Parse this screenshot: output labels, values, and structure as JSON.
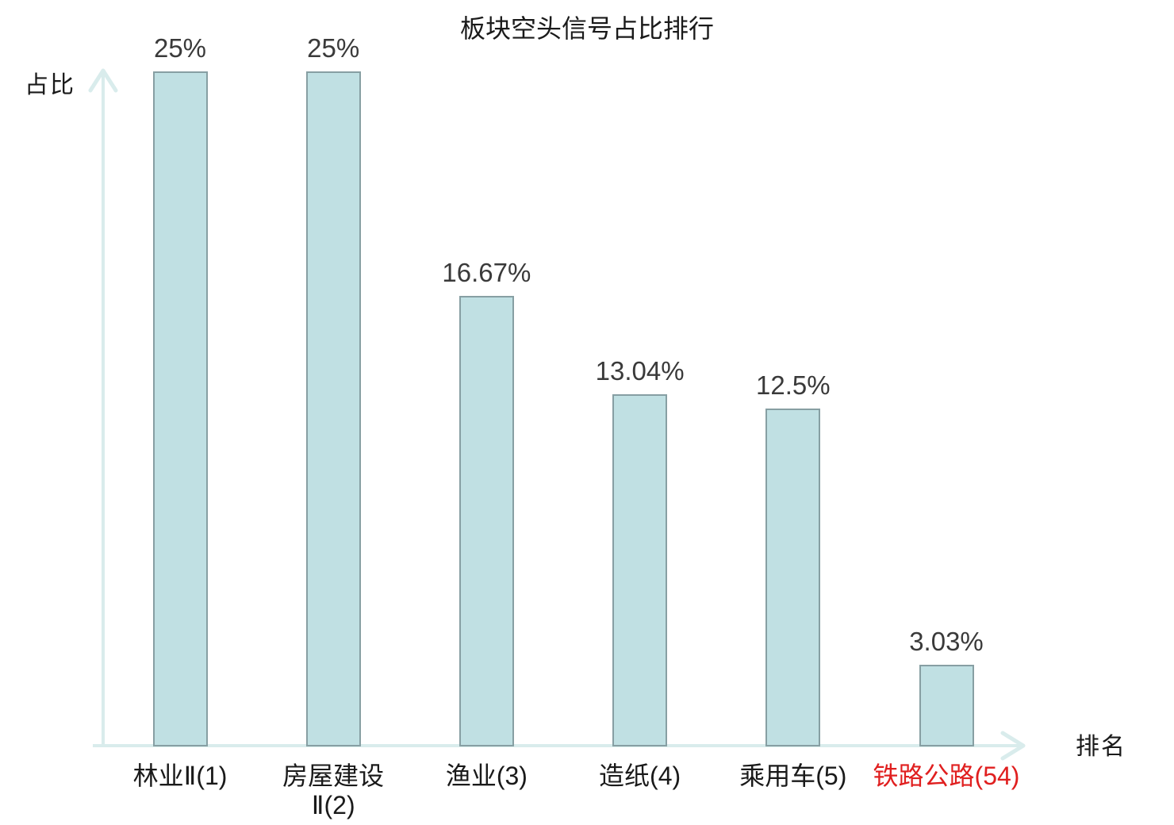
{
  "chart_data": {
    "type": "bar",
    "title": "板块空头信号占比排行",
    "xlabel": "排名",
    "ylabel": "占比",
    "categories": [
      "林业Ⅱ(1)",
      "房屋建设Ⅱ(2)",
      "渔业(3)",
      "造纸(4)",
      "乘用车(5)",
      "铁路公路(54)"
    ],
    "values": [
      25,
      25,
      16.67,
      13.04,
      12.5,
      3.03
    ],
    "ylim": [
      0,
      26
    ],
    "grid": false,
    "legend": false,
    "bars": [
      {
        "category": "林业Ⅱ(1)",
        "category_lines": [
          "林业Ⅱ(1)"
        ],
        "rank": 1,
        "value": 25,
        "value_label": "25%",
        "highlighted": false
      },
      {
        "category": "房屋建设Ⅱ(2)",
        "category_lines": [
          "房屋建设",
          "Ⅱ(2)"
        ],
        "rank": 2,
        "value": 25,
        "value_label": "25%",
        "highlighted": false
      },
      {
        "category": "渔业(3)",
        "category_lines": [
          "渔业(3)"
        ],
        "rank": 3,
        "value": 16.67,
        "value_label": "16.67%",
        "highlighted": false
      },
      {
        "category": "造纸(4)",
        "category_lines": [
          "造纸(4)"
        ],
        "rank": 4,
        "value": 13.04,
        "value_label": "13.04%",
        "highlighted": false
      },
      {
        "category": "乘用车(5)",
        "category_lines": [
          "乘用车(5)"
        ],
        "rank": 5,
        "value": 12.5,
        "value_label": "12.5%",
        "highlighted": false
      },
      {
        "category": "铁路公路(54)",
        "category_lines": [
          "铁路公路(54)"
        ],
        "rank": 54,
        "value": 3.03,
        "value_label": "3.03%",
        "highlighted": true
      }
    ],
    "colors": {
      "bar_fill": "#c0e0e3",
      "bar_border": "#879fa3",
      "axis": "#d9ecec",
      "text": "#1a1a1a",
      "value_text": "#3a3a3a",
      "highlight": "#e01f1f"
    }
  }
}
